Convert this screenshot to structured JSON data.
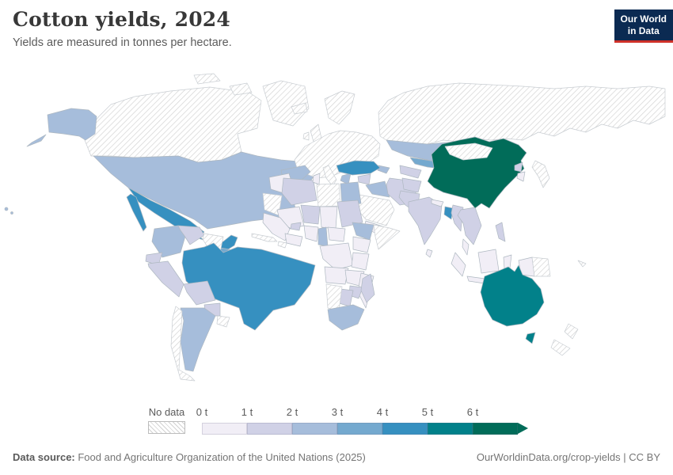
{
  "header": {
    "title": "Cotton yields, 2024",
    "subtitle": "Yields are measured in tonnes per hectare.",
    "logo_line1": "Our World",
    "logo_line2": "in Data",
    "logo_bg": "#0b2a52",
    "logo_accent": "#cf3129"
  },
  "legend": {
    "no_data_label": "No data",
    "tick_labels": [
      "0 t",
      "1 t",
      "2 t",
      "3 t",
      "4 t",
      "5 t",
      "6 t"
    ],
    "band_colors": [
      "#f1eef6",
      "#d0d1e6",
      "#a6bddb",
      "#74a9cf",
      "#3690c0",
      "#02818a",
      "#016c59"
    ],
    "unit": "t"
  },
  "map": {
    "ocean_color": "#ffffff",
    "border_color": "#aeb8c1",
    "no_data_border": "#c8cdd2",
    "hatch_line_color": "#d4d4d4",
    "countries": {
      "canada": "no_data",
      "greenland": "no_data",
      "usa": 2,
      "mexico": 4,
      "guatemala": 3,
      "honduras": 1,
      "nicaragua": 3,
      "costa_rica_panama": 1,
      "cuba": "no_data",
      "hispaniola": "no_data",
      "colombia": 2,
      "venezuela": 1,
      "guyanas": "no_data",
      "ecuador": 1,
      "peru": 1,
      "brazil": 4,
      "bolivia": 1,
      "paraguay": 1,
      "argentina": 2,
      "chile": "no_data",
      "uruguay": "no_data",
      "iceland": "no_data",
      "uk": "no_data",
      "ireland": "no_data",
      "scandinavia": "no_data",
      "europe": "no_data",
      "italy": "no_data",
      "spain": 2,
      "greece": 2,
      "russia": "no_data",
      "kazakhstan": 2,
      "uzbekistan": 3,
      "turkmenistan": 1,
      "kyrgyzstan": 3,
      "tajikistan": 4,
      "azerbaijan": 2,
      "turkey": 4,
      "syria": 1,
      "iraq": 2,
      "israel": 5,
      "iran": 1,
      "saudi_arabia": "no_data",
      "yemen": 0,
      "afghanistan": 1,
      "pakistan": 1,
      "india": 1,
      "nepal": 0,
      "sri_lanka": 0,
      "bangladesh": 4,
      "myanmar": 1,
      "indochina": 1,
      "malay_peninsula": 0,
      "china": 6,
      "mongolia": "no_data",
      "north_korea": 1,
      "south_korea": 0,
      "japan": "no_data",
      "philippines": 1,
      "indonesia": 0,
      "papua_new_guinea": "no_data",
      "australia": 5,
      "new_zealand": "no_data",
      "new_caledonia": "no_data",
      "morocco": 0,
      "western_sahara_mauritania": "no_data",
      "algeria": 1,
      "tunisia": 0,
      "libya": "no_data",
      "egypt": 2,
      "mali": 0,
      "burkina_faso": 1,
      "niger": 1,
      "chad": 0,
      "sudan": 1,
      "ethiopia": 2,
      "somalia": "no_data",
      "west_africa_coast": 0,
      "ghana_ivory": 0,
      "nigeria": 0,
      "cameroon": 2,
      "central_african_republic": 0,
      "dr_congo": 0,
      "kenya_uganda": 0,
      "tanzania": 0,
      "angola": 0,
      "zambia": 0,
      "mozambique": 0,
      "zimbabwe": 1,
      "botswana": 1,
      "namibia": "no_data",
      "south_africa": 2,
      "madagascar": 1
    }
  },
  "footer": {
    "source_label": "Data source:",
    "source_text": " Food and Agriculture Organization of the United Nations (2025)",
    "link_text": "OurWorldinData.org/crop-yields | CC BY"
  }
}
